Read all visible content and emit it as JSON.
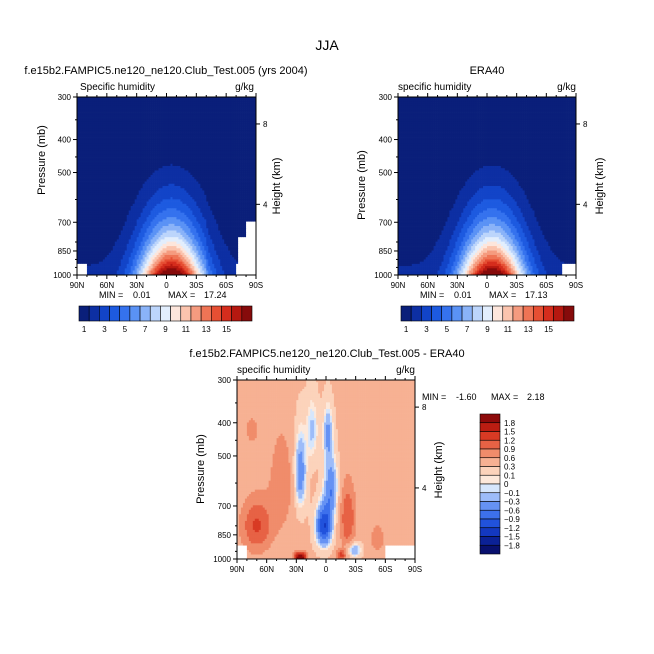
{
  "title": "JJA",
  "chart_data": [
    {
      "type": "heatmap",
      "title": "f.e15b2.FAMPIC5.ne120_ne120.Club_Test.005 (yrs 2004)",
      "left_string": "Specific humidity",
      "units": "g/kg",
      "ylabel": "Pressure (mb)",
      "ylabel_right": "Height (km)",
      "min_label": "MIN =",
      "min": "0.01",
      "max_label": "MAX =",
      "max": "17.24",
      "x_ticks": [
        "90N",
        "60N",
        "30N",
        "0",
        "30S",
        "60S",
        "90S"
      ],
      "y_ticks": [
        "300",
        "400",
        "500",
        "700",
        "850",
        "1000"
      ],
      "height_ticks": [
        "8",
        "4"
      ],
      "levels": [
        1,
        2,
        3,
        4,
        5,
        6,
        7,
        8,
        9,
        10,
        11,
        12,
        13,
        14,
        15,
        16
      ],
      "colorbar_labels": [
        "1",
        "3",
        "5",
        "7",
        "9",
        "11",
        "13",
        "15"
      ],
      "palette": [
        "#0a1f7a",
        "#0d2fa3",
        "#1244c8",
        "#1d5ae0",
        "#3572ee",
        "#5a92f5",
        "#8ab3f8",
        "#bcd5fb",
        "#e2eefd",
        "#fde6dc",
        "#fbc4ae",
        "#f59b7f",
        "#ef7455",
        "#e64f33",
        "#d52d1d",
        "#b51810",
        "#860b0b"
      ],
      "peak_lat": -5,
      "peak_value": 17.24,
      "missing_regions": [
        "north polar surface",
        "south polar surface"
      ]
    },
    {
      "type": "heatmap",
      "title": "ERA40",
      "left_string": "specific humidity",
      "units": "g/kg",
      "ylabel": "Pressure (mb)",
      "ylabel_right": "Height (km)",
      "min_label": "MIN =",
      "min": "0.01",
      "max_label": "MAX =",
      "max": "17.13",
      "x_ticks": [
        "90N",
        "60N",
        "30N",
        "0",
        "30S",
        "60S",
        "90S"
      ],
      "y_ticks": [
        "300",
        "400",
        "500",
        "700",
        "850",
        "1000"
      ],
      "height_ticks": [
        "8",
        "4"
      ],
      "levels": [
        1,
        2,
        3,
        4,
        5,
        6,
        7,
        8,
        9,
        10,
        11,
        12,
        13,
        14,
        15,
        16
      ],
      "colorbar_labels": [
        "1",
        "3",
        "5",
        "7",
        "9",
        "11",
        "13",
        "15"
      ],
      "palette": [
        "#0a1f7a",
        "#0d2fa3",
        "#1244c8",
        "#1d5ae0",
        "#3572ee",
        "#5a92f5",
        "#8ab3f8",
        "#bcd5fb",
        "#e2eefd",
        "#fde6dc",
        "#fbc4ae",
        "#f59b7f",
        "#ef7455",
        "#e64f33",
        "#d52d1d",
        "#b51810",
        "#860b0b"
      ],
      "peak_lat": -5,
      "peak_value": 17.13
    },
    {
      "type": "heatmap",
      "title": "f.e15b2.FAMPIC5.ne120_ne120.Club_Test.005 - ERA40",
      "left_string": "specific humidity",
      "units": "g/kg",
      "ylabel": "Pressure (mb)",
      "ylabel_right": "Height (km)",
      "min_label": "MIN =",
      "min": "-1.60",
      "max_label": "MAX =",
      "max": "2.18",
      "x_ticks": [
        "90N",
        "60N",
        "30N",
        "0",
        "30S",
        "60S",
        "90S"
      ],
      "y_ticks": [
        "300",
        "400",
        "500",
        "700",
        "850",
        "1000"
      ],
      "height_ticks": [
        "8",
        "4"
      ],
      "levels": [
        -1.8,
        -1.5,
        -1.2,
        -0.9,
        -0.6,
        -0.3,
        -0.1,
        0,
        0.1,
        0.3,
        0.6,
        0.9,
        1.2,
        1.5,
        1.8
      ],
      "colorbar_labels": [
        "1.8",
        "1.5",
        "1.2",
        "0.9",
        "0.6",
        "0.3",
        "0.1",
        "0",
        "−0.1",
        "−0.3",
        "−0.6",
        "−0.9",
        "−1.2",
        "−1.5",
        "−1.8"
      ],
      "palette": [
        "#08106e",
        "#0b2196",
        "#1338c0",
        "#2152dc",
        "#3d70ec",
        "#6592f4",
        "#9dbcf9",
        "#d6e6fc",
        "#fde8da",
        "#fcd3bb",
        "#f7b193",
        "#f08c6b",
        "#e76245",
        "#d83a24",
        "#bb1d12",
        "#8d0a0a"
      ]
    }
  ]
}
